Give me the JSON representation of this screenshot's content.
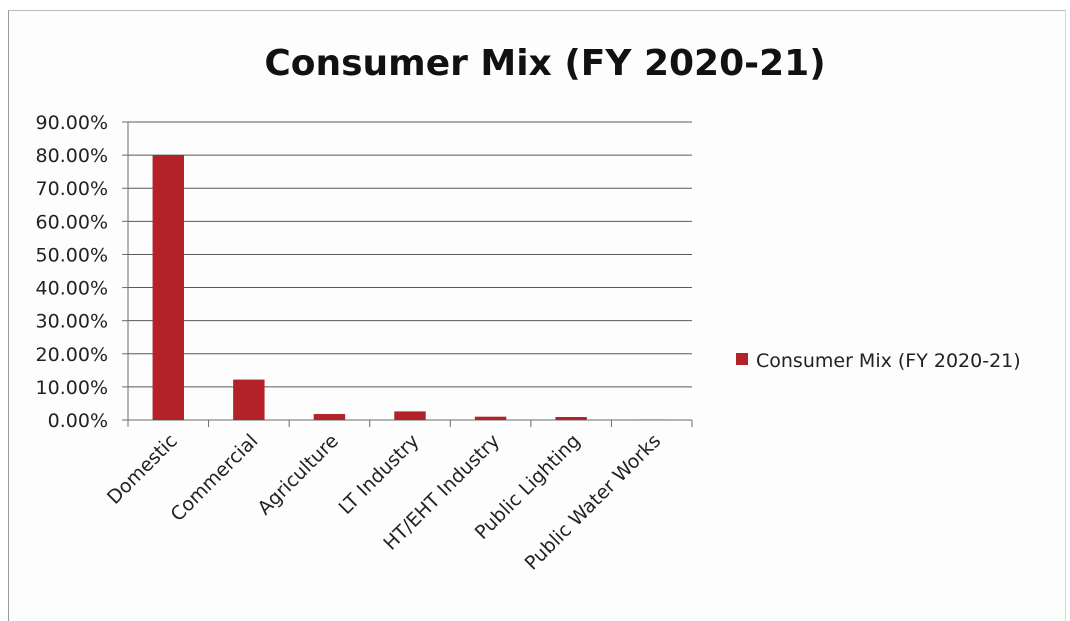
{
  "chart_data": {
    "type": "bar",
    "title": "Consumer Mix (FY 2020-21)",
    "xlabel": "",
    "ylabel": "",
    "categories": [
      "Domestic",
      "Commercial",
      "Agriculture",
      "LT Industry",
      "HT/EHT Industry",
      "Public Lighting",
      "Public Water Works"
    ],
    "series": [
      {
        "name": "Consumer Mix (FY 2020-21)",
        "values": [
          80.0,
          12.2,
          1.8,
          2.6,
          1.0,
          0.9,
          0.1
        ]
      }
    ],
    "ylim": [
      0,
      90
    ],
    "yticks": [
      "0.00%",
      "10.00%",
      "20.00%",
      "30.00%",
      "40.00%",
      "50.00%",
      "60.00%",
      "70.00%",
      "80.00%",
      "90.00%"
    ],
    "ytick_values": [
      0,
      10,
      20,
      30,
      40,
      50,
      60,
      70,
      80,
      90
    ],
    "grid": true,
    "legend_position": "right",
    "bar_color": "#b22228"
  }
}
